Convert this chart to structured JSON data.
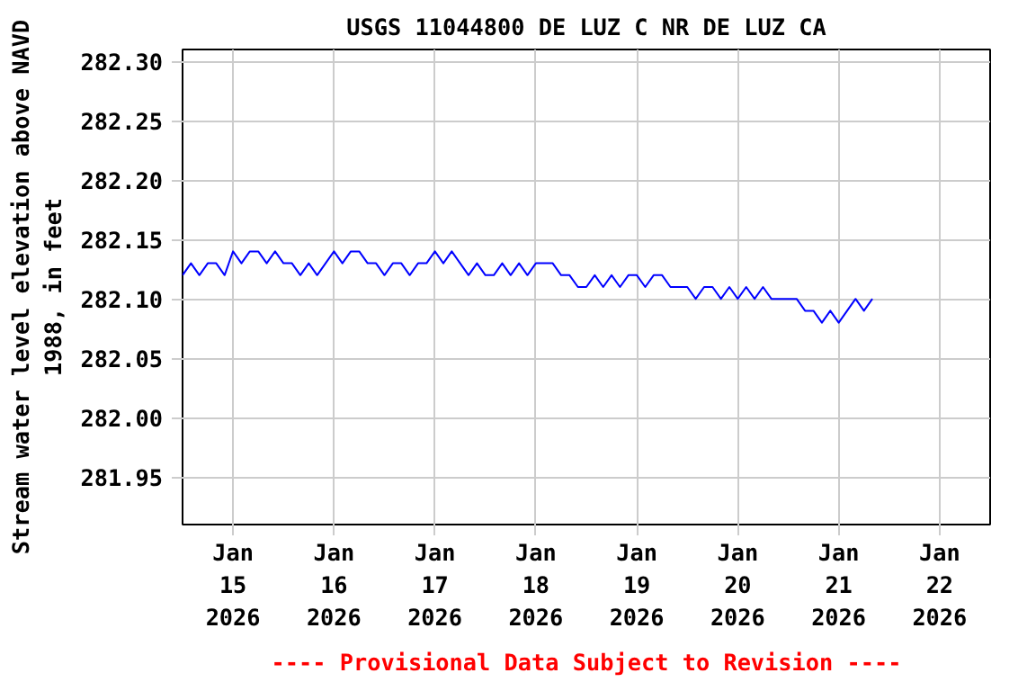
{
  "chart_data": {
    "type": "line",
    "title": "USGS 11044800 DE LUZ C NR DE LUZ CA",
    "ylabel": "Stream water level elevation above NAVD\n1988, in feet",
    "annotations": [
      "---- Provisional Data Subject to Revision ----"
    ],
    "x": [
      "2026-01-14T12:00",
      "2026-01-14T14:00",
      "2026-01-14T16:00",
      "2026-01-14T18:00",
      "2026-01-14T20:00",
      "2026-01-14T22:00",
      "2026-01-15T00:00",
      "2026-01-15T02:00",
      "2026-01-15T04:00",
      "2026-01-15T06:00",
      "2026-01-15T08:00",
      "2026-01-15T10:00",
      "2026-01-15T12:00",
      "2026-01-15T14:00",
      "2026-01-15T16:00",
      "2026-01-15T18:00",
      "2026-01-15T20:00",
      "2026-01-15T22:00",
      "2026-01-16T00:00",
      "2026-01-16T02:00",
      "2026-01-16T04:00",
      "2026-01-16T06:00",
      "2026-01-16T08:00",
      "2026-01-16T10:00",
      "2026-01-16T12:00",
      "2026-01-16T14:00",
      "2026-01-16T16:00",
      "2026-01-16T18:00",
      "2026-01-16T20:00",
      "2026-01-16T22:00",
      "2026-01-17T00:00",
      "2026-01-17T02:00",
      "2026-01-17T04:00",
      "2026-01-17T06:00",
      "2026-01-17T08:00",
      "2026-01-17T10:00",
      "2026-01-17T12:00",
      "2026-01-17T14:00",
      "2026-01-17T16:00",
      "2026-01-17T18:00",
      "2026-01-17T20:00",
      "2026-01-17T22:00",
      "2026-01-18T00:00",
      "2026-01-18T02:00",
      "2026-01-18T04:00",
      "2026-01-18T06:00",
      "2026-01-18T08:00",
      "2026-01-18T10:00",
      "2026-01-18T12:00",
      "2026-01-18T14:00",
      "2026-01-18T16:00",
      "2026-01-18T18:00",
      "2026-01-18T20:00",
      "2026-01-18T22:00",
      "2026-01-19T00:00",
      "2026-01-19T02:00",
      "2026-01-19T04:00",
      "2026-01-19T06:00",
      "2026-01-19T08:00",
      "2026-01-19T10:00",
      "2026-01-19T12:00",
      "2026-01-19T14:00",
      "2026-01-19T16:00",
      "2026-01-19T18:00",
      "2026-01-19T20:00",
      "2026-01-19T22:00",
      "2026-01-20T00:00",
      "2026-01-20T02:00",
      "2026-01-20T04:00",
      "2026-01-20T06:00",
      "2026-01-20T08:00",
      "2026-01-20T10:00",
      "2026-01-20T12:00",
      "2026-01-20T14:00",
      "2026-01-20T16:00",
      "2026-01-20T18:00",
      "2026-01-20T20:00",
      "2026-01-20T22:00",
      "2026-01-21T00:00",
      "2026-01-21T02:00",
      "2026-01-21T04:00",
      "2026-01-21T06:00",
      "2026-01-21T08:00"
    ],
    "series": [
      {
        "color": "#0000ff",
        "values": [
          282.12,
          282.13,
          282.12,
          282.13,
          282.13,
          282.12,
          282.14,
          282.13,
          282.14,
          282.14,
          282.13,
          282.14,
          282.13,
          282.13,
          282.12,
          282.13,
          282.12,
          282.13,
          282.14,
          282.13,
          282.14,
          282.14,
          282.13,
          282.13,
          282.12,
          282.13,
          282.13,
          282.12,
          282.13,
          282.13,
          282.14,
          282.13,
          282.14,
          282.13,
          282.12,
          282.13,
          282.12,
          282.12,
          282.13,
          282.12,
          282.13,
          282.12,
          282.13,
          282.13,
          282.13,
          282.12,
          282.12,
          282.11,
          282.11,
          282.12,
          282.11,
          282.12,
          282.11,
          282.12,
          282.12,
          282.11,
          282.12,
          282.12,
          282.11,
          282.11,
          282.11,
          282.1,
          282.11,
          282.11,
          282.1,
          282.11,
          282.1,
          282.11,
          282.1,
          282.11,
          282.1,
          282.1,
          282.1,
          282.1,
          282.09,
          282.09,
          282.08,
          282.09,
          282.08,
          282.09,
          282.1,
          282.09,
          282.1
        ]
      }
    ],
    "xlim": [
      "2026-01-14T12:00",
      "2026-01-22T12:00"
    ],
    "xticks": [
      {
        "value": "2026-01-15",
        "label": "Jan\n15\n2026"
      },
      {
        "value": "2026-01-16",
        "label": "Jan\n16\n2026"
      },
      {
        "value": "2026-01-17",
        "label": "Jan\n17\n2026"
      },
      {
        "value": "2026-01-18",
        "label": "Jan\n18\n2026"
      },
      {
        "value": "2026-01-19",
        "label": "Jan\n19\n2026"
      },
      {
        "value": "2026-01-20",
        "label": "Jan\n20\n2026"
      },
      {
        "value": "2026-01-21",
        "label": "Jan\n21\n2026"
      },
      {
        "value": "2026-01-22",
        "label": "Jan\n22\n2026"
      }
    ],
    "ylim": [
      281.91,
      282.31
    ],
    "yticks": [
      {
        "value": 281.95,
        "label": "281.95"
      },
      {
        "value": 282.0,
        "label": "282.00"
      },
      {
        "value": 282.05,
        "label": "282.05"
      },
      {
        "value": 282.1,
        "label": "282.10"
      },
      {
        "value": 282.15,
        "label": "282.15"
      },
      {
        "value": 282.2,
        "label": "282.20"
      },
      {
        "value": 282.25,
        "label": "282.25"
      },
      {
        "value": 282.3,
        "label": "282.30"
      }
    ],
    "grid": true
  }
}
